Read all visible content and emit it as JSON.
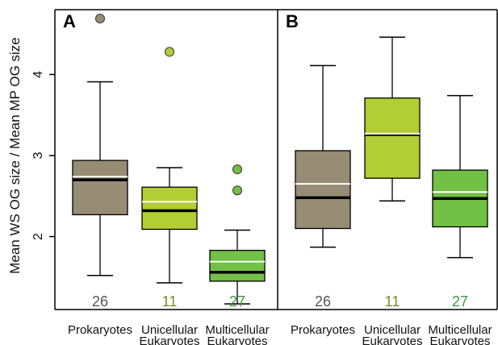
{
  "chart_data": {
    "type": "boxplot",
    "ylabel": "Mean WS OG size / Mean MP OG size",
    "ylim": [
      1.1,
      4.8
    ],
    "yticks": [
      2,
      3,
      4
    ],
    "categories": [
      [
        "Prokaryotes"
      ],
      [
        "Unicellular",
        "Eukaryotes"
      ],
      [
        "Multicellular",
        "Eukaryotes"
      ]
    ],
    "colors": {
      "box": [
        "#978c75",
        "#b3cd34",
        "#72c045"
      ],
      "count": [
        "#555555",
        "#7a8a2a",
        "#3a9a3a"
      ],
      "mean_line": "#ffffff",
      "median_line": "#000000"
    },
    "panels": [
      {
        "label": "A",
        "groups": [
          {
            "count": "26",
            "whisker_low": 1.52,
            "q1": 2.27,
            "median": 2.7,
            "mean": 2.74,
            "q3": 2.94,
            "whisker_high": 3.91,
            "outliers": [
              4.69
            ]
          },
          {
            "count": "11",
            "whisker_low": 1.43,
            "q1": 2.09,
            "median": 2.32,
            "mean": 2.43,
            "q3": 2.61,
            "whisker_high": 2.85,
            "outliers": [
              4.28
            ]
          },
          {
            "count": "27",
            "whisker_low": 1.17,
            "q1": 1.45,
            "median": 1.56,
            "mean": 1.69,
            "q3": 1.83,
            "whisker_high": 2.08,
            "outliers": [
              2.57,
              2.83
            ]
          }
        ]
      },
      {
        "label": "B",
        "groups": [
          {
            "count": "26",
            "whisker_low": 1.87,
            "q1": 2.1,
            "median": 2.48,
            "mean": 2.65,
            "q3": 3.06,
            "whisker_high": 4.11,
            "outliers": []
          },
          {
            "count": "11",
            "whisker_low": 2.44,
            "q1": 2.72,
            "median": 3.26,
            "mean": 3.27,
            "q3": 3.71,
            "whisker_high": 4.46,
            "outliers": []
          },
          {
            "count": "27",
            "whisker_low": 1.74,
            "q1": 2.12,
            "median": 2.47,
            "mean": 2.55,
            "q3": 2.82,
            "whisker_high": 3.74,
            "outliers": []
          }
        ]
      }
    ]
  }
}
